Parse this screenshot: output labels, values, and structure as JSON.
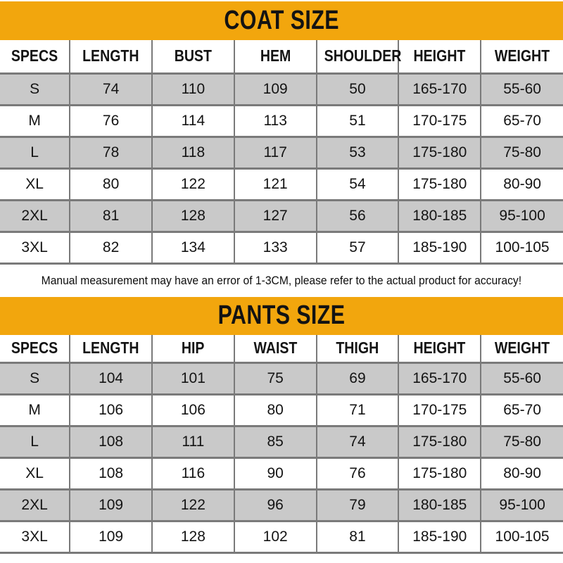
{
  "note": "Manual measurement may have an error of 1-3CM, please refer to the actual product for accuracy!",
  "colors": {
    "banner_background": "#F2A60D",
    "row_stripe": "#C9C9C9",
    "grid_line": "#7A7A7A",
    "text": "#141414"
  },
  "chart_data": [
    {
      "type": "table",
      "title": "COAT SIZE",
      "columns": [
        "SPECS",
        "LENGTH",
        "BUST",
        "HEM",
        "SHOULDER",
        "HEIGHT",
        "WEIGHT"
      ],
      "rows": [
        [
          "S",
          "74",
          "110",
          "109",
          "50",
          "165-170",
          "55-60"
        ],
        [
          "M",
          "76",
          "114",
          "113",
          "51",
          "170-175",
          "65-70"
        ],
        [
          "L",
          "78",
          "118",
          "117",
          "53",
          "175-180",
          "75-80"
        ],
        [
          "XL",
          "80",
          "122",
          "121",
          "54",
          "175-180",
          "80-90"
        ],
        [
          "2XL",
          "81",
          "128",
          "127",
          "56",
          "180-185",
          "95-100"
        ],
        [
          "3XL",
          "82",
          "134",
          "133",
          "57",
          "185-190",
          "100-105"
        ]
      ],
      "row_stripe_pattern": "odd rows gray, even rows white"
    },
    {
      "type": "table",
      "title": "PANTS SIZE",
      "columns": [
        "SPECS",
        "LENGTH",
        "HIP",
        "WAIST",
        "THIGH",
        "HEIGHT",
        "WEIGHT"
      ],
      "rows": [
        [
          "S",
          "104",
          "101",
          "75",
          "69",
          "165-170",
          "55-60"
        ],
        [
          "M",
          "106",
          "106",
          "80",
          "71",
          "170-175",
          "65-70"
        ],
        [
          "L",
          "108",
          "111",
          "85",
          "74",
          "175-180",
          "75-80"
        ],
        [
          "XL",
          "108",
          "116",
          "90",
          "76",
          "175-180",
          "80-90"
        ],
        [
          "2XL",
          "109",
          "122",
          "96",
          "79",
          "180-185",
          "95-100"
        ],
        [
          "3XL",
          "109",
          "128",
          "102",
          "81",
          "185-190",
          "100-105"
        ]
      ],
      "row_stripe_pattern": "odd rows gray, even rows white"
    }
  ]
}
